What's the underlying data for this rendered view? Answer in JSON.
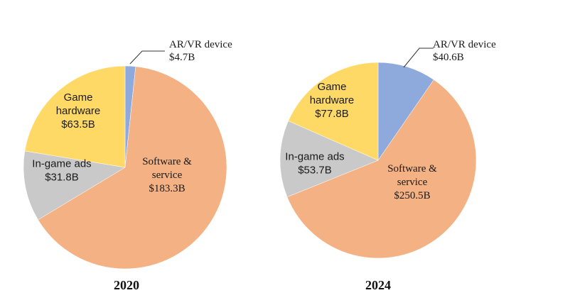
{
  "colors": {
    "ar_vr": "#8EA9DB",
    "software": "#F4B183",
    "ingame": "#C9C9C9",
    "hardware": "#FFD966"
  },
  "chart_data": [
    {
      "type": "pie",
      "title": "2020",
      "slices": [
        {
          "label": "AR/VR device",
          "value_text": "$4.7B",
          "value": 4.7,
          "color_key": "ar_vr",
          "label_lines": [
            "AR/VR device",
            "$4.7B"
          ]
        },
        {
          "label": "Software & service",
          "value_text": "$183.3B",
          "value": 183.3,
          "color_key": "software",
          "label_lines": [
            "Software &",
            "service",
            "$183.3B"
          ]
        },
        {
          "label": "In-game ads",
          "value_text": "$31.8B",
          "value": 31.8,
          "color_key": "ingame",
          "label_lines": [
            "In-game ads",
            "$31.8B"
          ]
        },
        {
          "label": "Game hardware",
          "value_text": "$63.5B",
          "value": 63.5,
          "color_key": "hardware",
          "label_lines": [
            "Game",
            "hardware",
            "$63.5B"
          ]
        }
      ]
    },
    {
      "type": "pie",
      "title": "2024",
      "slices": [
        {
          "label": "AR/VR device",
          "value_text": "$40.6B",
          "value": 40.6,
          "color_key": "ar_vr",
          "label_lines": [
            "AR/VR device",
            "$40.6B"
          ]
        },
        {
          "label": "Software & service",
          "value_text": "$250.5B",
          "value": 250.5,
          "color_key": "software",
          "label_lines": [
            "Software &",
            "service",
            "$250.5B"
          ]
        },
        {
          "label": "In-game ads",
          "value_text": "$53.7B",
          "value": 53.7,
          "color_key": "ingame",
          "label_lines": [
            "In-game ads",
            "$53.7B"
          ]
        },
        {
          "label": "Game hardware",
          "value_text": "$77.8B",
          "value": 77.8,
          "color_key": "hardware",
          "label_lines": [
            "Game",
            "hardware",
            "$77.8B"
          ]
        }
      ]
    }
  ]
}
